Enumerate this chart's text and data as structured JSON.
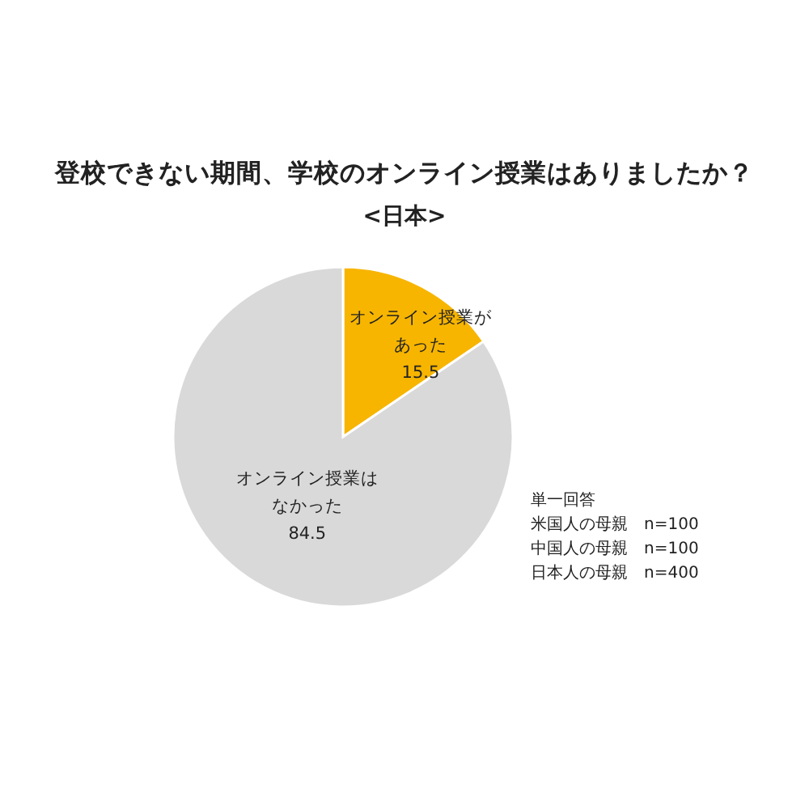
{
  "chart_data": {
    "type": "pie",
    "title": "登校できない期間、学校のオンライン授業はありましたか？",
    "subtitle": "<日本>",
    "categories": [
      "オンライン授業があった",
      "オンライン授業はなかった"
    ],
    "values": [
      15.5,
      84.5
    ],
    "colors": [
      "#f7b500",
      "#d9d9d9"
    ],
    "data_labels": true,
    "annotations": [
      "単一回答",
      "米国人の母親　n=100",
      "中国人の母親　n=100",
      "日本人の母親　n=400"
    ]
  }
}
